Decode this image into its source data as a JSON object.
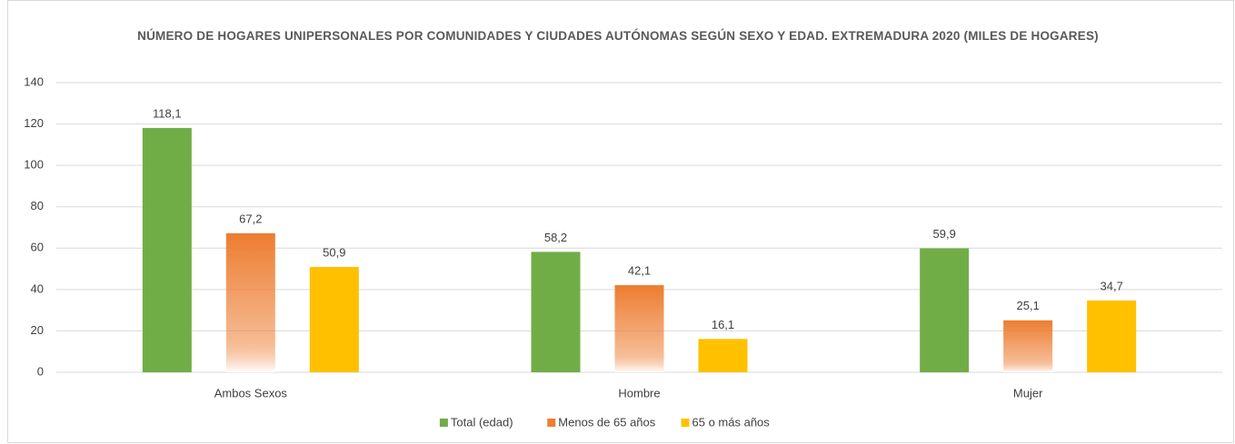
{
  "chart_data": {
    "type": "bar",
    "title": "NÚMERO DE HOGARES UNIPERSONALES POR COMUNIDADES Y CIUDADES AUTÓNOMAS SEGÚN SEXO Y EDAD. EXTREMADURA 2020 (MILES DE HOGARES)",
    "categories": [
      "Ambos Sexos",
      "Hombre",
      "Mujer"
    ],
    "series": [
      {
        "name": "Total (edad)",
        "color": "#70ad47",
        "values": [
          118.1,
          58.2,
          59.9
        ],
        "value_labels": [
          "118,1",
          "58,2",
          "59,9"
        ]
      },
      {
        "name": "Menos de 65 años",
        "color": "#ed7d31",
        "values": [
          67.2,
          42.1,
          25.1
        ],
        "value_labels": [
          "67,2",
          "42,1",
          "25,1"
        ]
      },
      {
        "name": "65 o más años",
        "color": "#ffc000",
        "values": [
          50.9,
          16.1,
          34.7
        ],
        "value_labels": [
          "50,9",
          "16,1",
          "34,7"
        ]
      }
    ],
    "ylim": [
      0,
      140
    ],
    "yticks": [
      0,
      20,
      40,
      60,
      80,
      100,
      120,
      140
    ],
    "grid": true,
    "legend": "bottom"
  }
}
